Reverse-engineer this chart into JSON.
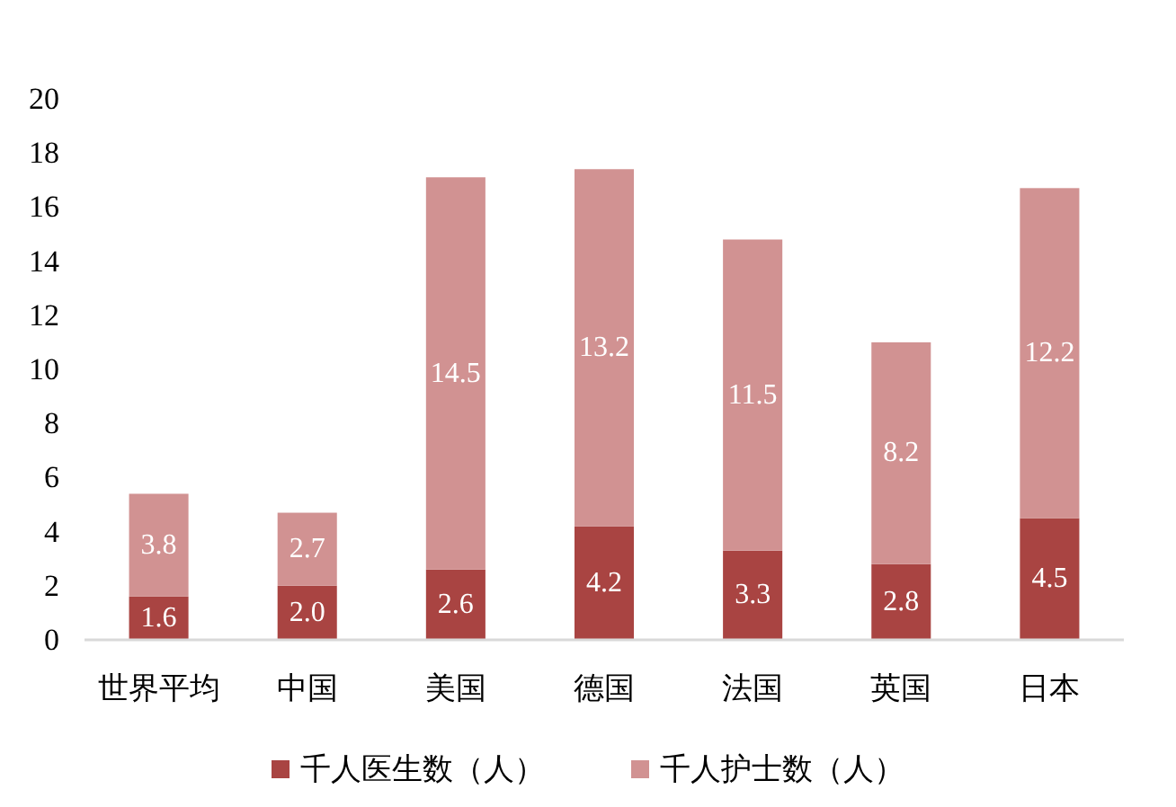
{
  "chart_data": {
    "type": "bar",
    "stacked": true,
    "categories": [
      "世界平均",
      "中国",
      "美国",
      "德国",
      "法国",
      "英国",
      "日本"
    ],
    "series": [
      {
        "name": "千人医生数（人）",
        "color": "#a94442",
        "values": [
          1.6,
          2.0,
          2.6,
          4.2,
          3.3,
          2.8,
          4.5
        ],
        "value_labels": [
          "1.6",
          "2.0",
          "2.6",
          "4.2",
          "3.3",
          "2.8",
          "4.5"
        ]
      },
      {
        "name": "千人护士数（人）",
        "color": "#d19292",
        "values": [
          3.8,
          2.7,
          14.5,
          13.2,
          11.5,
          8.2,
          12.2
        ],
        "value_labels": [
          "3.8",
          "2.7",
          "14.5",
          "13.2",
          "11.5",
          "8.2",
          "12.2"
        ]
      }
    ],
    "ylim": [
      0,
      20
    ],
    "yticks": [
      0,
      2,
      4,
      6,
      8,
      10,
      12,
      14,
      16,
      18,
      20
    ],
    "grid": false,
    "legend": "bottom"
  }
}
